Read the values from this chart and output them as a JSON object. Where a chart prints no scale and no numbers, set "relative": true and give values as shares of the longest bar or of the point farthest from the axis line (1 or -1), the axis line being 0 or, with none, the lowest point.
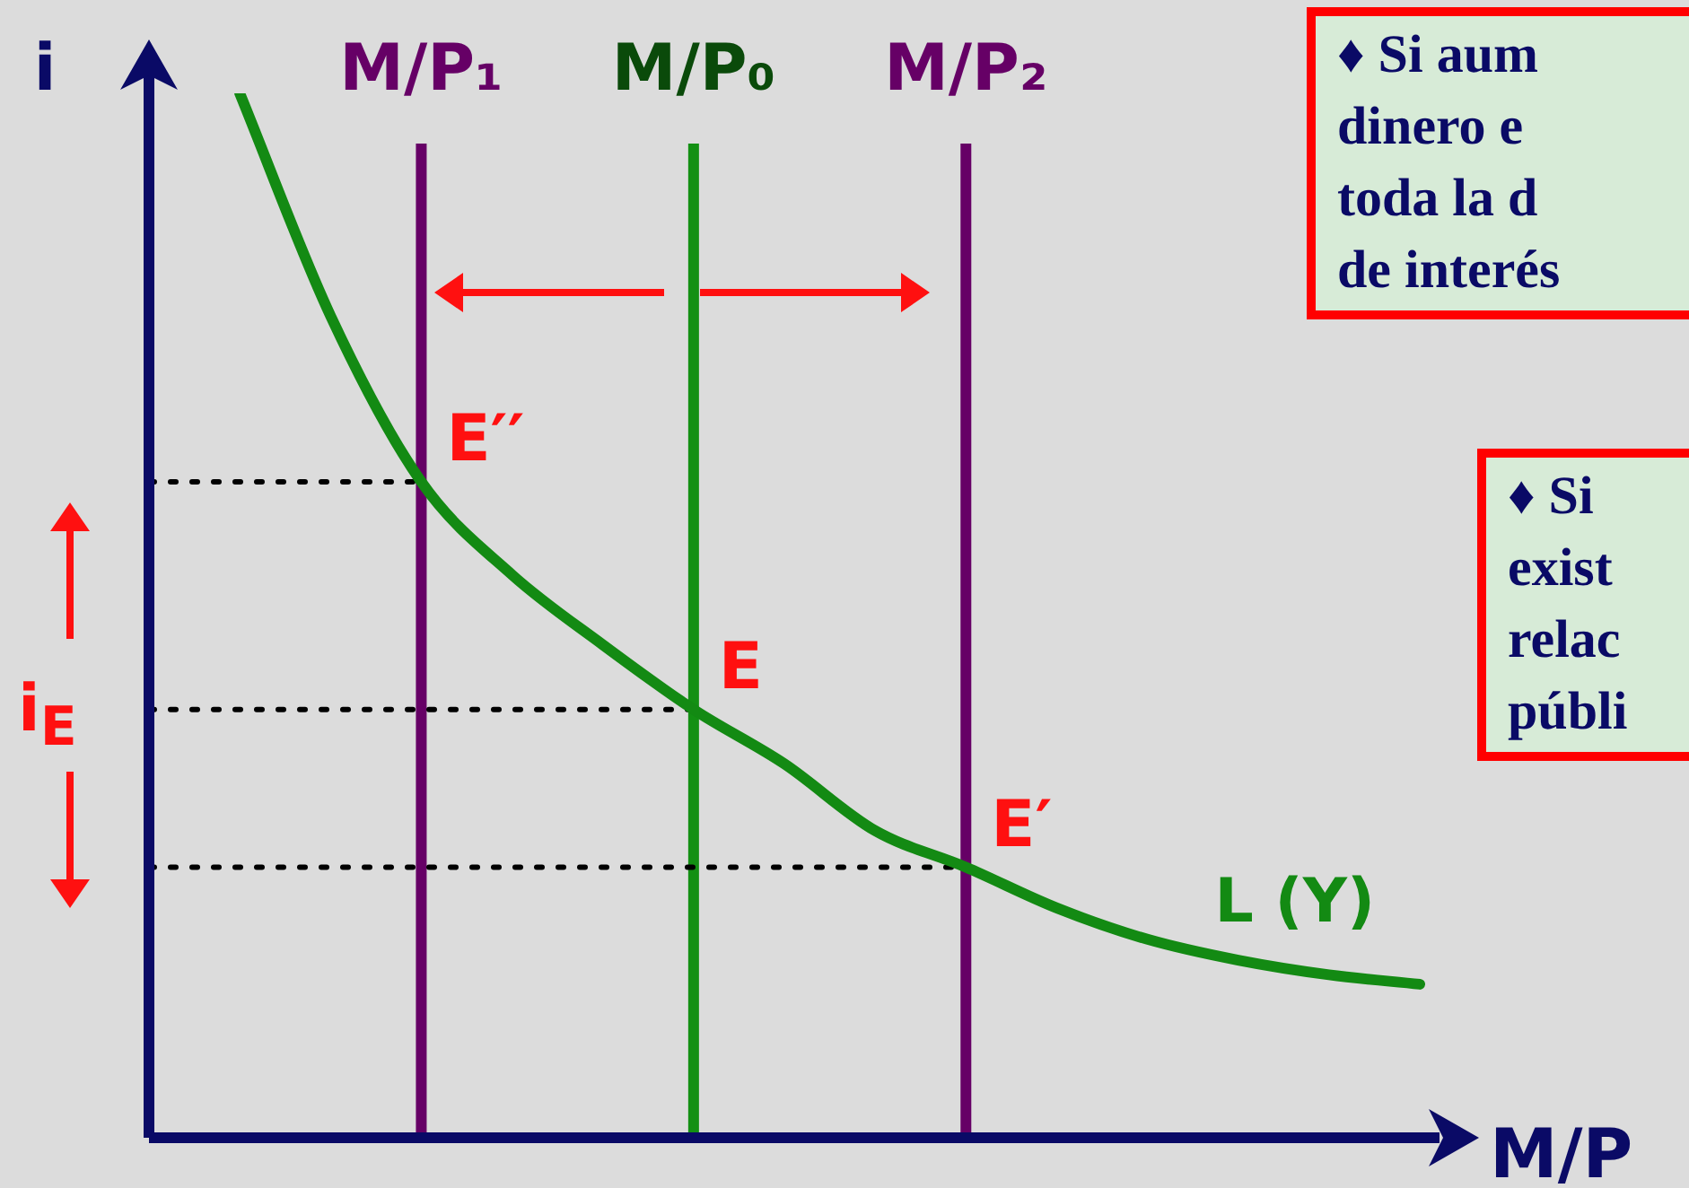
{
  "chart_data": {
    "type": "line",
    "relative": true,
    "xlabel": "M/P",
    "ylabel": "i",
    "legend": false,
    "tick_labels": "x",
    "categories": [
      null,
      null,
      null,
      "M/P₁",
      null,
      null,
      "M/P₀",
      null,
      null,
      "M/P₂",
      null,
      null,
      null,
      null,
      null
    ],
    "series": [
      {
        "name": "L (Y)",
        "color": "#138a13",
        "values": [
          null,
          1,
          0.787,
          0.628,
          0.539,
          0.472,
          0.41,
          0.358,
          0.294,
          0.259,
          0.22,
          0.19,
          0.17,
          0.156,
          0.147
        ]
      },
      {
        "color": "#000000",
        "line_style": "dotted",
        "values": [
          0.628,
          0.628,
          0.628,
          0.628,
          null,
          null,
          null,
          null,
          null,
          null,
          null,
          null,
          null,
          null,
          null
        ]
      },
      {
        "color": "#000000",
        "line_style": "dotted",
        "values": [
          0.41,
          0.41,
          0.41,
          0.41,
          0.41,
          0.41,
          0.41,
          null,
          null,
          null,
          null,
          null,
          null,
          null,
          null
        ]
      },
      {
        "color": "#000000",
        "line_style": "dotted",
        "values": [
          0.259,
          0.259,
          0.259,
          0.259,
          0.259,
          0.259,
          0.259,
          0.259,
          0.259,
          0.259,
          null,
          null,
          null,
          null,
          null
        ]
      }
    ],
    "ref_lines": [
      {
        "axis": "x",
        "value": "M/P₁",
        "color": "#660066"
      },
      {
        "axis": "x",
        "value": "M/P₀",
        "color": "#139013"
      },
      {
        "axis": "x",
        "value": "M/P₂",
        "color": "#660066"
      }
    ],
    "annotations": [
      {
        "text": "E′′",
        "x": "M/P₁",
        "y": 0.628
      },
      {
        "text": "E",
        "x": "M/P₀",
        "y": 0.41
      },
      {
        "text": "E′",
        "x": "M/P₂",
        "y": 0.259
      },
      "i$_{E}$",
      "♦ Si aum\ndinero e\ntoda la d\nde interés",
      "♦ Si\nexist\nrelac\npúbli"
    ]
  }
}
